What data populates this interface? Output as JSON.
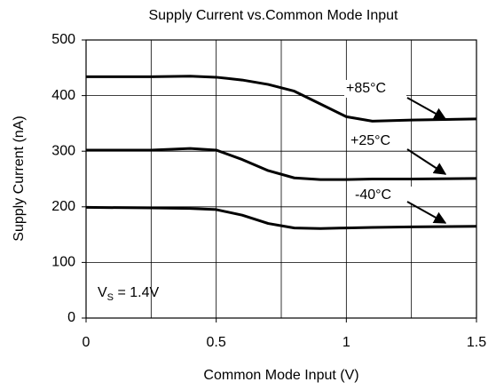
{
  "chart_data": {
    "type": "line",
    "title": "Supply Current vs.Common Mode Input",
    "xlabel": "Common Mode Input (V)",
    "ylabel": "Supply Current (nA)",
    "x": [
      0,
      0.25,
      0.4,
      0.5,
      0.6,
      0.7,
      0.8,
      0.9,
      1.0,
      1.1,
      1.25,
      1.5
    ],
    "series": [
      {
        "name": "+85°C",
        "color": "#000000",
        "values": [
          434,
          434,
          435,
          433,
          428,
          420,
          408,
          385,
          362,
          354,
          356,
          358
        ]
      },
      {
        "name": "+25°C",
        "color": "#000000",
        "values": [
          302,
          302,
          305,
          302,
          285,
          265,
          252,
          249,
          249,
          250,
          250,
          251
        ]
      },
      {
        "name": "-40°C",
        "color": "#000000",
        "values": [
          199,
          198,
          197,
          195,
          185,
          170,
          162,
          161,
          162,
          163,
          164,
          165
        ]
      }
    ],
    "xlim": [
      0,
      1.5
    ],
    "xticks": [
      0,
      0.5,
      1,
      1.5
    ],
    "xgrid": [
      0.25,
      0.5,
      0.75,
      1,
      1.25
    ],
    "ylim": [
      0,
      500
    ],
    "yticks": [
      0,
      100,
      200,
      300,
      400,
      500
    ],
    "grid": true,
    "annotation": {
      "main": "V",
      "sub": "S",
      "rest": " = 1.4V"
    }
  }
}
